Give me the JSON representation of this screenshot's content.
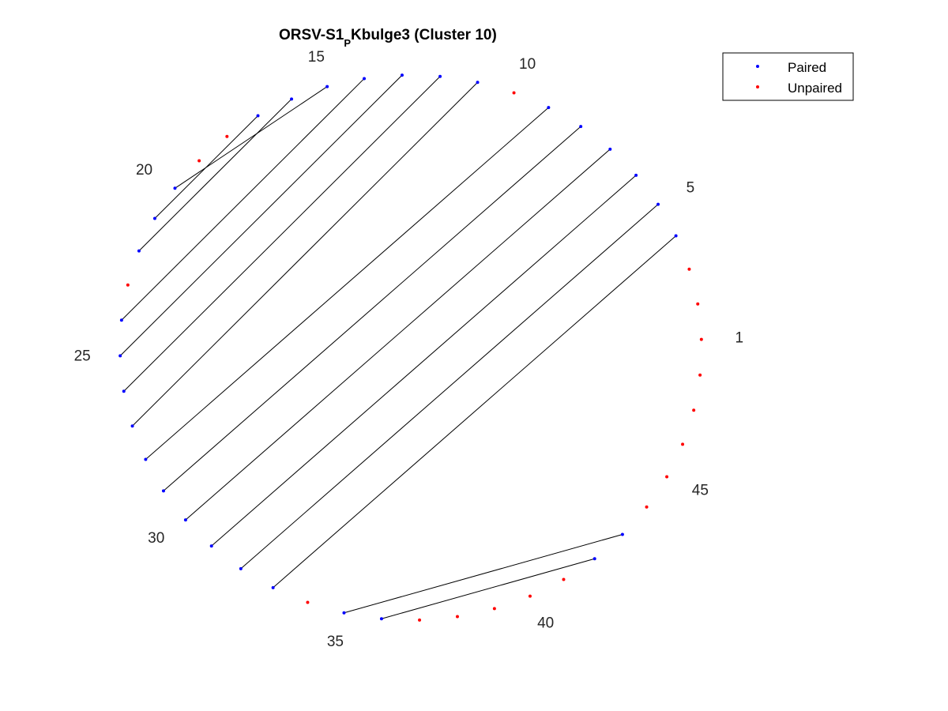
{
  "chart_data": {
    "type": "scatter",
    "title_main": "ORSV-S1",
    "title_sub": "P",
    "title_rest": "Kbulge3 (Cluster 10)",
    "n_nucleotides": 48,
    "position_labels": [
      "1",
      "5",
      "10",
      "15",
      "20",
      "25",
      "30",
      "35",
      "40",
      "45"
    ],
    "label_positions": [
      1,
      5,
      10,
      15,
      20,
      25,
      30,
      35,
      40,
      45
    ],
    "pairs": [
      [
        4,
        33
      ],
      [
        5,
        32
      ],
      [
        6,
        31
      ],
      [
        7,
        30
      ],
      [
        8,
        29
      ],
      [
        9,
        28
      ],
      [
        11,
        27
      ],
      [
        12,
        26
      ],
      [
        13,
        25
      ],
      [
        14,
        24
      ],
      [
        16,
        22
      ],
      [
        17,
        21
      ],
      [
        15,
        20
      ],
      [
        42,
        36
      ],
      [
        43,
        35
      ]
    ],
    "legend": [
      {
        "name": "Paired",
        "color": "#0000ff"
      },
      {
        "name": "Unpaired",
        "color": "#ff0000"
      }
    ],
    "line_color": "#000000",
    "grid": false,
    "axes_visible": false,
    "legend_position": "top-right"
  }
}
